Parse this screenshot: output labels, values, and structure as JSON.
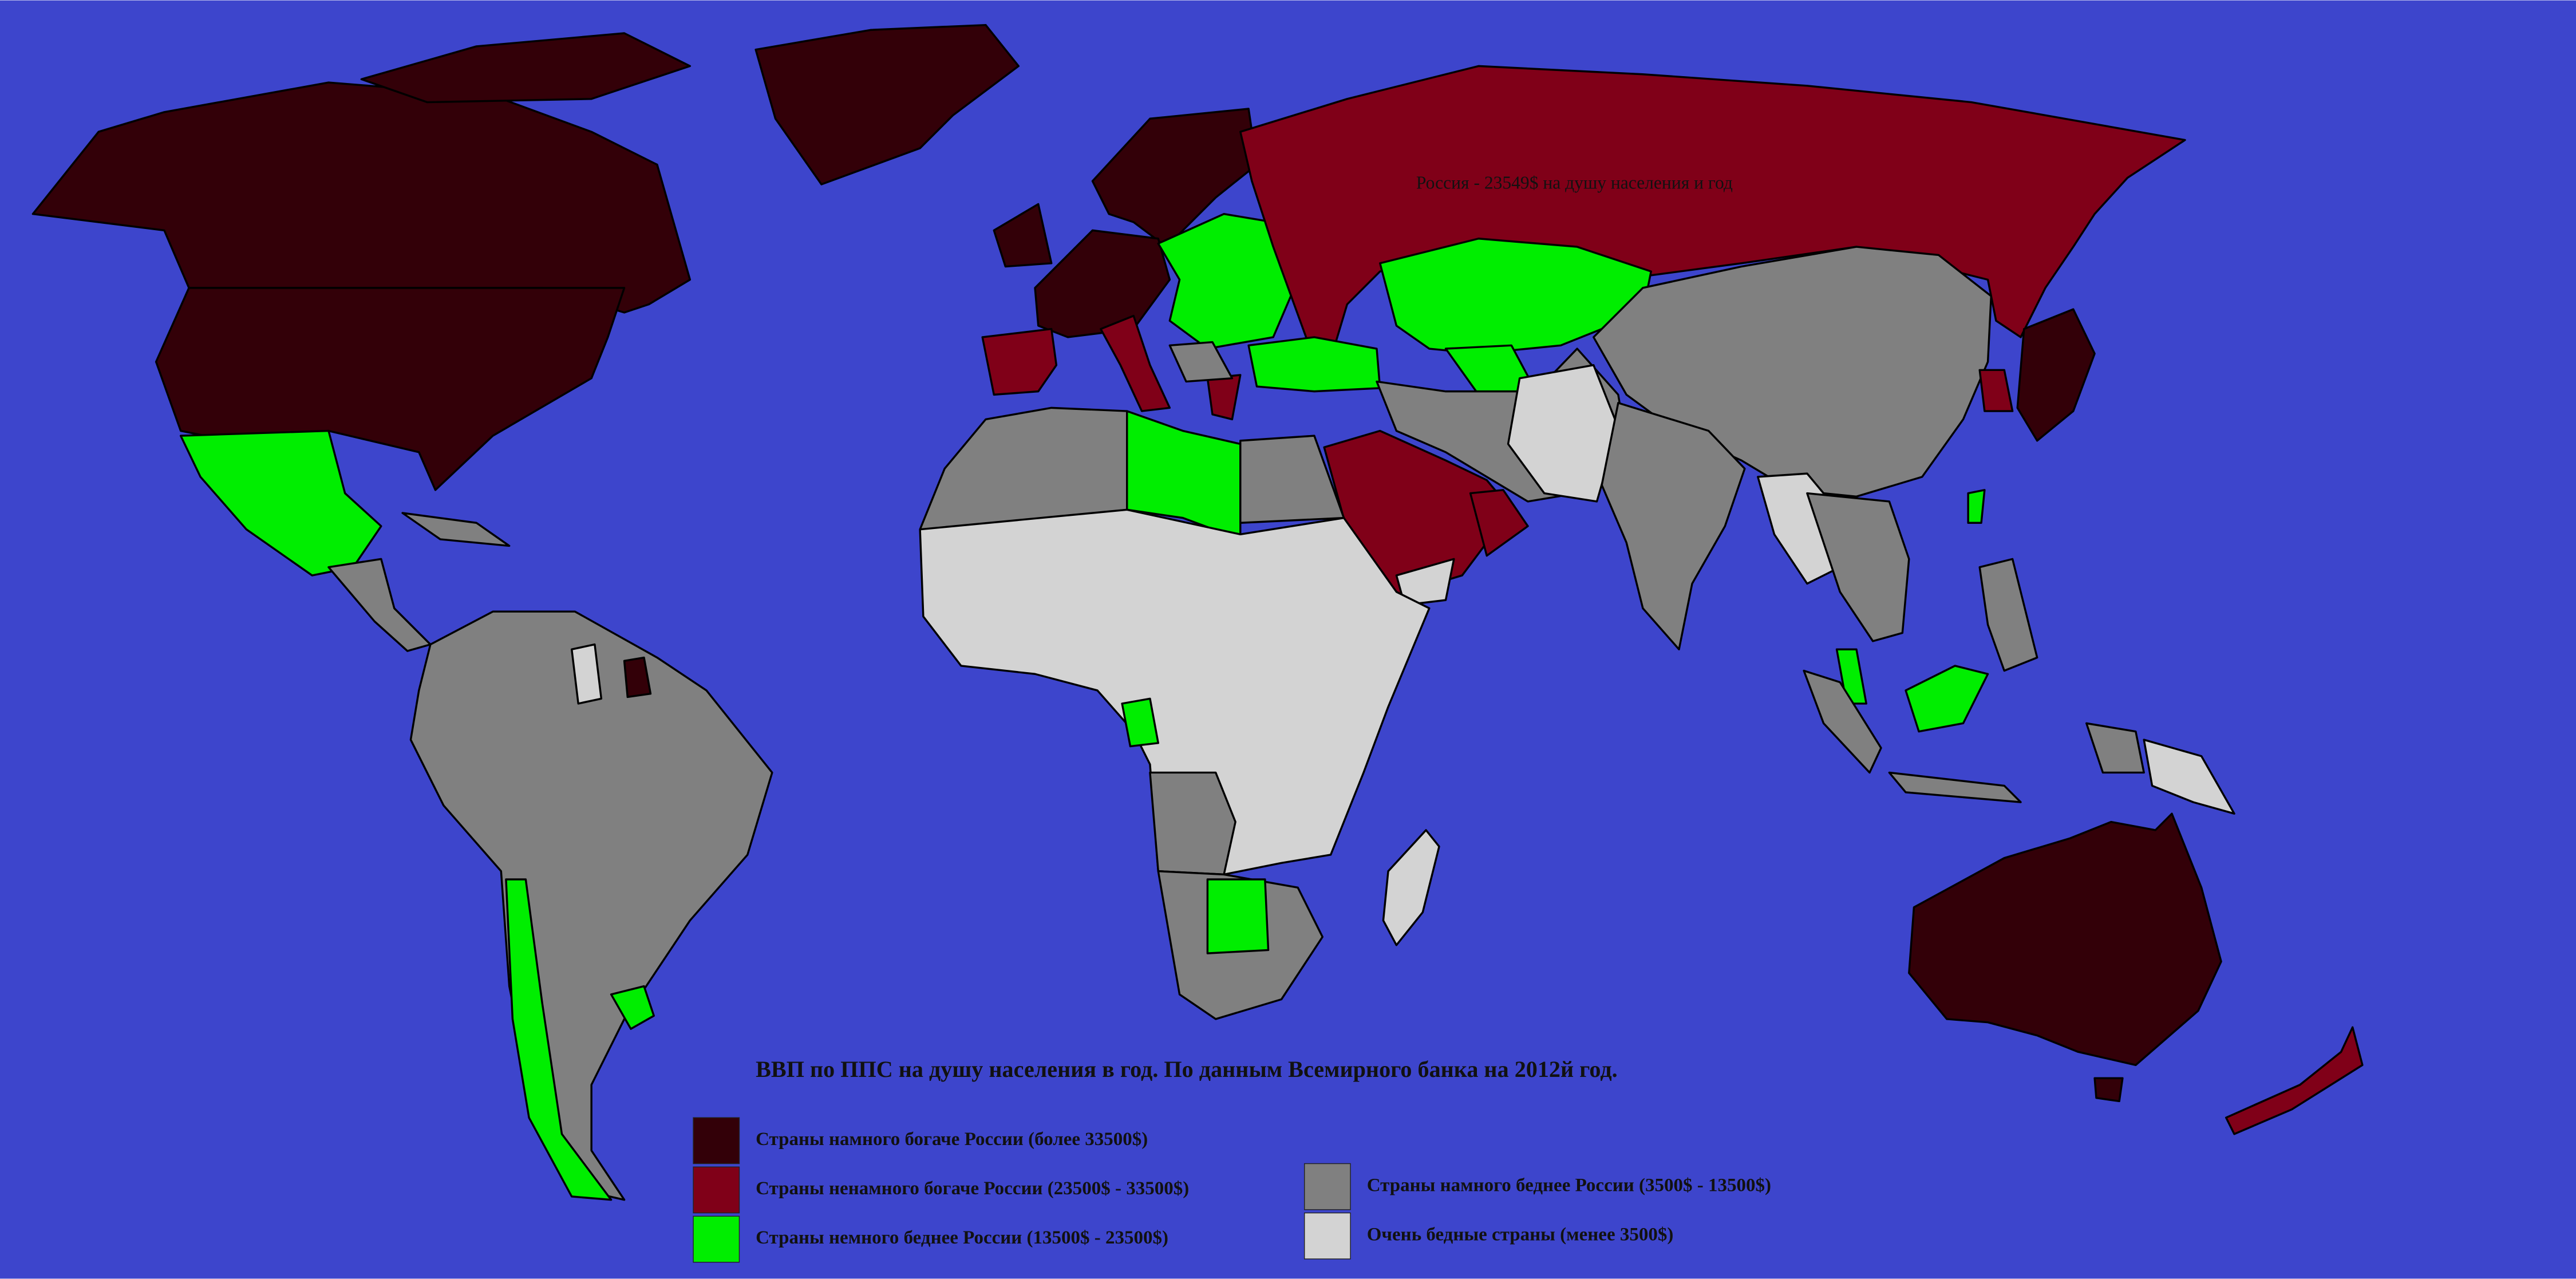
{
  "title": "ВВП по ППС на душу населения в год.  По данным Всемирного банка на 2012й год.",
  "annotation": "Россия - 23549$ на душу населения и год",
  "background": "#3d45cc",
  "legend": [
    {
      "label": "Страны намного богаче России (более 33500$)",
      "color": "#330008"
    },
    {
      "label": "Страны ненамного богаче России (23500$ - 33500$)",
      "color": "#800018"
    },
    {
      "label": "Страны немного беднее России (13500$ - 23500$)",
      "color": "#00ee00"
    },
    {
      "label": "Страны намного беднее России (3500$ - 13500$)",
      "color": "#808080"
    },
    {
      "label": "Очень бедные страны (менее 3500$)",
      "color": "#d3d3d3"
    }
  ]
}
